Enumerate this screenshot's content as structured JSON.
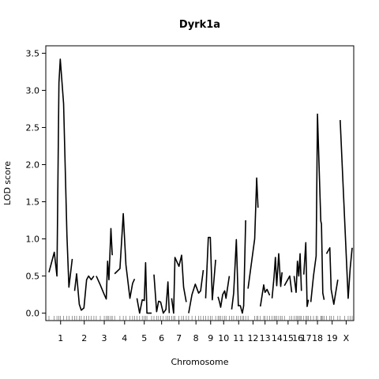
{
  "chart_data": {
    "type": "line",
    "title": "Dyrk1a",
    "xlabel": "Chromosome",
    "ylabel": "LOD score",
    "ylim": [
      -0.1,
      3.6
    ],
    "yticks": [
      0.0,
      0.5,
      1.0,
      1.5,
      2.0,
      2.5,
      3.0,
      3.5
    ],
    "ytick_labels": [
      "0.0",
      "0.5",
      "1.0",
      "1.5",
      "2.0",
      "2.5",
      "3.0",
      "3.5"
    ],
    "grid": false,
    "chromosomes": [
      {
        "label": "1",
        "points": [
          [
            0,
            0.55
          ],
          [
            8,
            0.82
          ],
          [
            12,
            0.5
          ],
          [
            15,
            3.1
          ],
          [
            17,
            3.42
          ],
          [
            22,
            2.82
          ],
          [
            27,
            1.05
          ],
          [
            30,
            0.35
          ],
          [
            35,
            0.73
          ]
        ]
      },
      {
        "label": "2",
        "points": [
          [
            0,
            0.3
          ],
          [
            3,
            0.53
          ],
          [
            7,
            0.12
          ],
          [
            10,
            0.04
          ],
          [
            14,
            0.07
          ],
          [
            18,
            0.45
          ],
          [
            21,
            0.5
          ],
          [
            25,
            0.45
          ],
          [
            29,
            0.5
          ]
        ]
      },
      {
        "label": "3",
        "points": [
          [
            0,
            0.5
          ],
          [
            6,
            0.38
          ],
          [
            12,
            0.25
          ],
          [
            15,
            0.19
          ],
          [
            17,
            0.7
          ],
          [
            19,
            0.45
          ],
          [
            22,
            1.14
          ],
          [
            24,
            0.78
          ]
        ]
      },
      {
        "label": "4",
        "points": [
          [
            0,
            0.53
          ],
          [
            8,
            0.6
          ],
          [
            13,
            1.34
          ],
          [
            17,
            0.65
          ],
          [
            23,
            0.2
          ],
          [
            27,
            0.4
          ],
          [
            30,
            0.46
          ]
        ]
      },
      {
        "label": "5",
        "points": [
          [
            0,
            0.2
          ],
          [
            4,
            0.0
          ],
          [
            8,
            0.18
          ],
          [
            11,
            0.17
          ],
          [
            13,
            0.68
          ],
          [
            15,
            0.0
          ],
          [
            22,
            0.0
          ]
        ]
      },
      {
        "label": "6",
        "points": [
          [
            0,
            0.52
          ],
          [
            4,
            0.02
          ],
          [
            7,
            0.16
          ],
          [
            10,
            0.15
          ],
          [
            14,
            0.0
          ],
          [
            18,
            0.05
          ],
          [
            21,
            0.42
          ],
          [
            23,
            0.0
          ]
        ]
      },
      {
        "label": "7",
        "points": [
          [
            0,
            0.2
          ],
          [
            3,
            0.0
          ],
          [
            5,
            0.75
          ],
          [
            11,
            0.63
          ],
          [
            15,
            0.78
          ],
          [
            18,
            0.35
          ],
          [
            22,
            0.15
          ]
        ]
      },
      {
        "label": "8",
        "points": [
          [
            0,
            0.0
          ],
          [
            5,
            0.25
          ],
          [
            10,
            0.39
          ],
          [
            15,
            0.27
          ],
          [
            18,
            0.3
          ],
          [
            22,
            0.58
          ]
        ]
      },
      {
        "label": "9",
        "points": [
          [
            0,
            0.2
          ],
          [
            4,
            1.02
          ],
          [
            7,
            1.02
          ],
          [
            10,
            0.18
          ],
          [
            15,
            0.72
          ]
        ]
      },
      {
        "label": "10",
        "points": [
          [
            0,
            0.22
          ],
          [
            2,
            0.16
          ],
          [
            4,
            0.08
          ],
          [
            7,
            0.25
          ],
          [
            10,
            0.3
          ],
          [
            12,
            0.2
          ],
          [
            17,
            0.5
          ]
        ]
      },
      {
        "label": "11",
        "points": [
          [
            0,
            0.05
          ],
          [
            3,
            0.27
          ],
          [
            7,
            0.99
          ],
          [
            10,
            0.1
          ],
          [
            13,
            0.1
          ],
          [
            16,
            0.0
          ],
          [
            18,
            0.1
          ],
          [
            21,
            1.25
          ]
        ]
      },
      {
        "label": "12",
        "points": [
          [
            0,
            0.33
          ],
          [
            10,
            1.0
          ],
          [
            13,
            1.82
          ],
          [
            15,
            1.42
          ]
        ]
      },
      {
        "label": "13",
        "points": [
          [
            0,
            0.09
          ],
          [
            5,
            0.38
          ],
          [
            7,
            0.28
          ],
          [
            10,
            0.32
          ],
          [
            14,
            0.24
          ]
        ]
      },
      {
        "label": "14",
        "points": [
          [
            0,
            0.2
          ],
          [
            3,
            0.49
          ],
          [
            5,
            0.75
          ],
          [
            7,
            0.37
          ],
          [
            10,
            0.8
          ],
          [
            13,
            0.36
          ],
          [
            15,
            0.55
          ]
        ]
      },
      {
        "label": "15",
        "points": [
          [
            0,
            0.37
          ],
          [
            8,
            0.5
          ],
          [
            11,
            0.28
          ]
        ]
      },
      {
        "label": "16",
        "points": [
          [
            0,
            0.5
          ],
          [
            3,
            0.28
          ],
          [
            5,
            0.7
          ],
          [
            7,
            0.5
          ],
          [
            9,
            0.8
          ],
          [
            11,
            0.3
          ]
        ]
      },
      {
        "label": "17",
        "points": [
          [
            0,
            0.52
          ],
          [
            3,
            0.95
          ],
          [
            5,
            0.09
          ],
          [
            7,
            0.18
          ]
        ]
      },
      {
        "label": "18",
        "points": [
          [
            0,
            0.15
          ],
          [
            4,
            0.5
          ],
          [
            8,
            0.77
          ],
          [
            10,
            2.68
          ],
          [
            15,
            1.24
          ],
          [
            16,
            1.2
          ],
          [
            18,
            0.27
          ],
          [
            20,
            0.18
          ]
        ]
      },
      {
        "label": "19",
        "points": [
          [
            0,
            0.8
          ],
          [
            5,
            0.88
          ],
          [
            7,
            0.32
          ],
          [
            11,
            0.12
          ],
          [
            17,
            0.45
          ]
        ]
      },
      {
        "label": "X",
        "points": [
          [
            0,
            2.6
          ],
          [
            7,
            1.2
          ],
          [
            12,
            0.2
          ],
          [
            15,
            0.6
          ],
          [
            18,
            0.88
          ]
        ]
      }
    ]
  }
}
